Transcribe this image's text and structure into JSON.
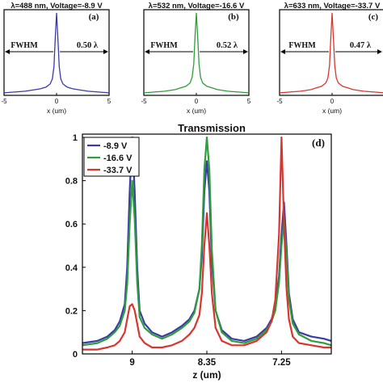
{
  "chart_data": [
    {
      "type": "line",
      "panel_label": "(a)",
      "title": "λ=488 nm, Voltage=-8.9 V",
      "xlabel": "x (um)",
      "xlim": [
        -5,
        5
      ],
      "ylim": [
        0,
        1
      ],
      "xticks": [
        "-5",
        "0",
        "5"
      ],
      "annotation_left": "FWHM",
      "annotation_right": "0.50 λ",
      "color": "#3a3aa8",
      "series": [
        {
          "x": [
            -5,
            -4,
            -3,
            -2,
            -1.5,
            -1,
            -0.6,
            -0.4,
            -0.25,
            -0.12,
            0,
            0.12,
            0.25,
            0.4,
            0.6,
            1,
            1.5,
            2,
            3,
            4,
            5
          ],
          "y": [
            0.03,
            0.04,
            0.05,
            0.07,
            0.08,
            0.1,
            0.14,
            0.2,
            0.35,
            0.7,
            1.0,
            0.7,
            0.35,
            0.2,
            0.14,
            0.1,
            0.08,
            0.07,
            0.05,
            0.04,
            0.03
          ]
        }
      ]
    },
    {
      "type": "line",
      "panel_label": "(b)",
      "title": "λ=532 nm, Voltage=-16.6 V",
      "xlabel": "x (um)",
      "xlim": [
        -5,
        5
      ],
      "ylim": [
        0,
        1
      ],
      "xticks": [
        "-5",
        "0",
        "5"
      ],
      "annotation_left": "FWHM",
      "annotation_right": "0.52 λ",
      "color": "#2e9e3a",
      "series": [
        {
          "x": [
            -5,
            -4,
            -3,
            -2,
            -1.5,
            -1,
            -0.6,
            -0.4,
            -0.25,
            -0.12,
            0,
            0.12,
            0.25,
            0.4,
            0.6,
            1,
            1.5,
            2,
            3,
            4,
            5
          ],
          "y": [
            0.03,
            0.04,
            0.05,
            0.07,
            0.09,
            0.11,
            0.15,
            0.22,
            0.38,
            0.72,
            1.0,
            0.72,
            0.38,
            0.22,
            0.15,
            0.11,
            0.09,
            0.07,
            0.05,
            0.04,
            0.03
          ]
        }
      ]
    },
    {
      "type": "line",
      "panel_label": "(c)",
      "title": "λ=633 nm, Voltage=-33.7 V",
      "xlabel": "x (um)",
      "xlim": [
        -5,
        5
      ],
      "ylim": [
        0,
        1
      ],
      "xticks": [
        "-5",
        "0",
        "5"
      ],
      "annotation_left": "FWHM",
      "annotation_right": "0.47 λ",
      "color": "#d9352f",
      "series": [
        {
          "x": [
            -5,
            -4,
            -3,
            -2,
            -1.5,
            -1,
            -0.6,
            -0.4,
            -0.25,
            -0.12,
            0,
            0.12,
            0.25,
            0.4,
            0.6,
            1,
            1.5,
            2,
            3,
            4,
            5
          ],
          "y": [
            0.03,
            0.04,
            0.05,
            0.07,
            0.09,
            0.11,
            0.15,
            0.21,
            0.36,
            0.7,
            1.0,
            0.7,
            0.36,
            0.21,
            0.15,
            0.11,
            0.09,
            0.07,
            0.05,
            0.04,
            0.03
          ]
        }
      ]
    },
    {
      "type": "line",
      "panel_label": "(d)",
      "title": "Transmission",
      "xlabel": "z (um)",
      "ylabel": "",
      "xlim": [
        0,
        10
      ],
      "ylim": [
        0,
        1
      ],
      "xtick_positions": [
        2.0,
        5.0,
        8.0
      ],
      "xtick_labels": [
        "9",
        "8.35",
        "7.25"
      ],
      "yticks": [
        0,
        0.2,
        0.4,
        0.6,
        0.8,
        1
      ],
      "ytick_labels": [
        "0",
        "0.2",
        "0.4",
        "0.6",
        "0.8",
        "1"
      ],
      "legend_position": "top-left",
      "series": [
        {
          "name": "-8.9 V",
          "color": "#3a3aa8",
          "x": [
            0,
            0.6,
            1.0,
            1.3,
            1.5,
            1.7,
            1.8,
            1.9,
            2.0,
            2.1,
            2.2,
            2.3,
            2.5,
            2.8,
            3.2,
            3.6,
            4.0,
            4.3,
            4.5,
            4.7,
            4.8,
            4.9,
            5.0,
            5.1,
            5.2,
            5.35,
            5.6,
            6.0,
            6.5,
            7.0,
            7.4,
            7.6,
            7.75,
            7.9,
            8.0,
            8.1,
            8.2,
            8.3,
            8.45,
            8.7,
            9.2,
            9.7,
            10
          ],
          "y": [
            0.05,
            0.06,
            0.08,
            0.11,
            0.15,
            0.23,
            0.4,
            0.75,
            1.0,
            0.75,
            0.4,
            0.2,
            0.14,
            0.1,
            0.08,
            0.1,
            0.13,
            0.16,
            0.2,
            0.3,
            0.45,
            0.75,
            0.89,
            0.75,
            0.42,
            0.2,
            0.11,
            0.07,
            0.06,
            0.08,
            0.12,
            0.16,
            0.22,
            0.36,
            0.55,
            0.7,
            0.5,
            0.28,
            0.16,
            0.1,
            0.08,
            0.07,
            0.06
          ]
        },
        {
          "name": "-16.6 V",
          "color": "#2e9e3a",
          "x": [
            0,
            0.6,
            1.0,
            1.3,
            1.5,
            1.7,
            1.8,
            1.9,
            2.0,
            2.1,
            2.2,
            2.3,
            2.5,
            2.8,
            3.2,
            3.6,
            4.0,
            4.3,
            4.5,
            4.7,
            4.8,
            4.9,
            5.0,
            5.1,
            5.2,
            5.35,
            5.6,
            6.0,
            6.5,
            7.0,
            7.4,
            7.6,
            7.75,
            7.9,
            8.0,
            8.1,
            8.2,
            8.3,
            8.45,
            8.7,
            9.2,
            9.7,
            10
          ],
          "y": [
            0.04,
            0.05,
            0.07,
            0.1,
            0.13,
            0.2,
            0.32,
            0.6,
            0.8,
            0.62,
            0.33,
            0.17,
            0.12,
            0.09,
            0.07,
            0.09,
            0.12,
            0.15,
            0.19,
            0.3,
            0.5,
            0.85,
            1.0,
            0.85,
            0.48,
            0.2,
            0.1,
            0.06,
            0.05,
            0.07,
            0.11,
            0.15,
            0.2,
            0.33,
            0.5,
            0.62,
            0.45,
            0.25,
            0.14,
            0.09,
            0.06,
            0.05,
            0.04
          ]
        },
        {
          "name": "-33.7 V",
          "color": "#d9352f",
          "x": [
            0,
            0.6,
            1.0,
            1.3,
            1.5,
            1.7,
            1.8,
            1.9,
            2.0,
            2.1,
            2.2,
            2.3,
            2.5,
            2.8,
            3.2,
            3.6,
            4.0,
            4.3,
            4.5,
            4.7,
            4.8,
            4.9,
            5.0,
            5.1,
            5.2,
            5.35,
            5.6,
            6.0,
            6.5,
            7.0,
            7.4,
            7.6,
            7.75,
            7.9,
            8.0,
            8.1,
            8.2,
            8.3,
            8.45,
            8.7,
            9.2,
            9.7,
            10
          ],
          "y": [
            0.02,
            0.02,
            0.03,
            0.04,
            0.06,
            0.1,
            0.16,
            0.22,
            0.23,
            0.2,
            0.14,
            0.08,
            0.05,
            0.03,
            0.03,
            0.04,
            0.06,
            0.09,
            0.12,
            0.18,
            0.28,
            0.5,
            0.65,
            0.5,
            0.28,
            0.12,
            0.06,
            0.04,
            0.04,
            0.06,
            0.1,
            0.15,
            0.25,
            0.55,
            1.0,
            0.6,
            0.3,
            0.16,
            0.08,
            0.05,
            0.04,
            0.03,
            0.03
          ]
        }
      ]
    }
  ]
}
